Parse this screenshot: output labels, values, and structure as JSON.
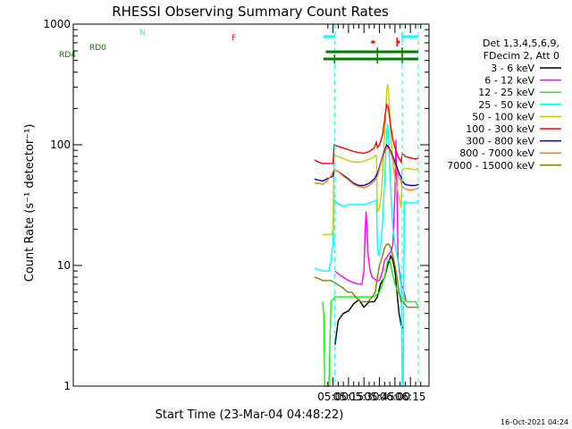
{
  "chart_data": {
    "type": "line",
    "title": "RHESSI Observing Summary Count Rates",
    "xlabel": "Start Time (23-Mar-04 04:48:22)",
    "ylabel": "Count Rate (s⁻¹ detector⁻¹)",
    "y_scale": "log",
    "ylim": [
      1,
      1000
    ],
    "xlim_minutes": [
      48.37,
      393.0
    ],
    "y_ticks": [
      {
        "v": 1,
        "label": "1"
      },
      {
        "v": 10,
        "label": "10"
      },
      {
        "v": 100,
        "label": "100"
      },
      {
        "v": 1000,
        "label": "1000"
      }
    ],
    "x_ticks": [
      {
        "m": 300,
        "label": "05:00"
      },
      {
        "m": 315,
        "label": "05:15"
      },
      {
        "m": 330,
        "label": "05:30"
      },
      {
        "m": 345,
        "label": "05:45"
      },
      {
        "m": 360,
        "label": "06:00"
      },
      {
        "m": 375,
        "label": "06:15"
      }
    ],
    "legend_header": [
      "Det 1,3,4,5,6,9,",
      "FDecim 2, Att 0"
    ],
    "legend_placement": "right",
    "series": [
      {
        "name": "3 - 6 keV",
        "color": "#000000",
        "points": [
          [
            302,
            2.2
          ],
          [
            305,
            3.5
          ],
          [
            310,
            4
          ],
          [
            315,
            4.2
          ],
          [
            320,
            4.8
          ],
          [
            325,
            5.2
          ],
          [
            330,
            4.5
          ],
          [
            335,
            5
          ],
          [
            340,
            5
          ],
          [
            343,
            5.5
          ],
          [
            346,
            7
          ],
          [
            350,
            8
          ],
          [
            353,
            10
          ],
          [
            356,
            12
          ],
          [
            358,
            11
          ],
          [
            360,
            9
          ],
          [
            362,
            6
          ],
          [
            364,
            4
          ],
          [
            366,
            3.2
          ],
          [
            367.5,
            3
          ]
        ]
      },
      {
        "name": "6 - 12 keV",
        "color": "#ff00ff",
        "points": [
          [
            302,
            9
          ],
          [
            305,
            8.5
          ],
          [
            310,
            8
          ],
          [
            315,
            7.5
          ],
          [
            320,
            7.2
          ],
          [
            325,
            7
          ],
          [
            328,
            7
          ],
          [
            330,
            9
          ],
          [
            331,
            18
          ],
          [
            332,
            28
          ],
          [
            333,
            20
          ],
          [
            334,
            12
          ],
          [
            336,
            9
          ],
          [
            338,
            8
          ],
          [
            342,
            7.5
          ],
          [
            345,
            7.5
          ],
          [
            348,
            9
          ],
          [
            350,
            11
          ],
          [
            353,
            12
          ],
          [
            356,
            13
          ],
          [
            358,
            15
          ],
          [
            360,
            40
          ],
          [
            361,
            110
          ],
          [
            362,
            40
          ],
          [
            363,
            11
          ],
          [
            366,
            7
          ],
          [
            368,
            6.5
          ],
          [
            371,
            5
          ]
        ]
      },
      {
        "name": "12 - 25 keV",
        "color": "#00ff00",
        "points": [
          [
            290,
            5
          ],
          [
            291,
            4
          ],
          [
            292,
            1
          ],
          [
            295,
            1
          ],
          [
            296,
            1
          ],
          [
            298,
            5
          ],
          [
            302,
            5.5
          ],
          [
            310,
            5.5
          ],
          [
            320,
            5.5
          ],
          [
            330,
            5.5
          ],
          [
            340,
            5.5
          ],
          [
            345,
            6
          ],
          [
            350,
            8
          ],
          [
            353,
            11
          ],
          [
            355,
            11
          ],
          [
            357,
            9
          ],
          [
            360,
            7
          ],
          [
            363,
            6
          ],
          [
            366,
            5.5
          ],
          [
            372,
            5
          ],
          [
            380,
            5
          ],
          [
            383,
            4.5
          ]
        ]
      },
      {
        "name": "25 - 50 keV",
        "color": "#00ffff",
        "points": [
          [
            282,
            9.5
          ],
          [
            290,
            9
          ],
          [
            294,
            9
          ],
          [
            296,
            9
          ],
          [
            297,
            10
          ],
          [
            298,
            11
          ],
          [
            299,
            13
          ],
          [
            300,
            15
          ],
          [
            301,
            35
          ],
          [
            304,
            33
          ],
          [
            310,
            31
          ],
          [
            315,
            32
          ],
          [
            320,
            32
          ],
          [
            325,
            32
          ],
          [
            330,
            32
          ],
          [
            335,
            33
          ],
          [
            340,
            34
          ],
          [
            342,
            35
          ],
          [
            343,
            15
          ],
          [
            344,
            12
          ],
          [
            346,
            14
          ],
          [
            348,
            22
          ],
          [
            350,
            50
          ],
          [
            352,
            130
          ],
          [
            353,
            150
          ],
          [
            354,
            110
          ],
          [
            356,
            40
          ],
          [
            358,
            20
          ],
          [
            360,
            15
          ],
          [
            362,
            12
          ],
          [
            364,
            10
          ],
          [
            366,
            8
          ],
          [
            367,
            1
          ],
          [
            368,
            1
          ],
          [
            369,
            34
          ],
          [
            372,
            33
          ],
          [
            375,
            33
          ],
          [
            380,
            33
          ],
          [
            383,
            35
          ]
        ]
      },
      {
        "name": "50 - 100 keV",
        "color": "#cccc00",
        "points": [
          [
            290,
            18
          ],
          [
            296,
            18
          ],
          [
            299,
            18
          ],
          [
            300,
            20
          ],
          [
            301,
            82
          ],
          [
            305,
            80
          ],
          [
            310,
            77
          ],
          [
            315,
            74
          ],
          [
            320,
            72
          ],
          [
            325,
            72
          ],
          [
            330,
            73
          ],
          [
            335,
            76
          ],
          [
            340,
            80
          ],
          [
            342,
            82
          ],
          [
            343,
            28
          ],
          [
            345,
            30
          ],
          [
            347,
            40
          ],
          [
            349,
            80
          ],
          [
            351,
            180
          ],
          [
            352,
            280
          ],
          [
            353,
            320
          ],
          [
            354,
            260
          ],
          [
            356,
            120
          ],
          [
            358,
            70
          ],
          [
            360,
            52
          ],
          [
            363,
            40
          ],
          [
            366,
            30
          ],
          [
            367,
            62
          ],
          [
            370,
            64
          ],
          [
            375,
            63
          ],
          [
            380,
            62
          ],
          [
            383,
            64
          ]
        ]
      },
      {
        "name": "100 - 300 keV",
        "color": "#ff0000",
        "points": [
          [
            282,
            75
          ],
          [
            286,
            72
          ],
          [
            290,
            70
          ],
          [
            294,
            70
          ],
          [
            300,
            70
          ],
          [
            301,
            100
          ],
          [
            305,
            97
          ],
          [
            310,
            94
          ],
          [
            315,
            91
          ],
          [
            320,
            88
          ],
          [
            325,
            86
          ],
          [
            330,
            85
          ],
          [
            335,
            88
          ],
          [
            340,
            94
          ],
          [
            342,
            105
          ],
          [
            343,
            95
          ],
          [
            345,
            100
          ],
          [
            348,
            120
          ],
          [
            350,
            160
          ],
          [
            351,
            190
          ],
          [
            352,
            215
          ],
          [
            353,
            210
          ],
          [
            354,
            190
          ],
          [
            356,
            140
          ],
          [
            358,
            110
          ],
          [
            360,
            95
          ],
          [
            363,
            80
          ],
          [
            366,
            72
          ],
          [
            367,
            85
          ],
          [
            370,
            80
          ],
          [
            375,
            78
          ],
          [
            380,
            76
          ],
          [
            383,
            78
          ]
        ]
      },
      {
        "name": "300 - 800 keV",
        "color": "#0000cc",
        "points": [
          [
            282,
            52
          ],
          [
            286,
            51
          ],
          [
            290,
            50
          ],
          [
            294,
            52
          ],
          [
            300,
            55
          ],
          [
            301,
            62
          ],
          [
            305,
            60
          ],
          [
            310,
            56
          ],
          [
            315,
            52
          ],
          [
            320,
            48
          ],
          [
            325,
            46
          ],
          [
            330,
            46
          ],
          [
            335,
            48
          ],
          [
            340,
            52
          ],
          [
            343,
            58
          ],
          [
            346,
            70
          ],
          [
            349,
            85
          ],
          [
            352,
            100
          ],
          [
            354,
            95
          ],
          [
            356,
            88
          ],
          [
            358,
            80
          ],
          [
            360,
            72
          ],
          [
            362,
            65
          ],
          [
            364,
            58
          ],
          [
            366,
            54
          ],
          [
            367,
            50
          ],
          [
            370,
            47
          ],
          [
            375,
            46
          ],
          [
            380,
            46
          ],
          [
            383,
            47
          ]
        ]
      },
      {
        "name": "800 - 7000 keV",
        "color": "#ff8000",
        "points": [
          [
            282,
            48
          ],
          [
            286,
            48
          ],
          [
            290,
            47
          ],
          [
            294,
            50
          ],
          [
            298,
            55
          ],
          [
            300,
            60
          ],
          [
            301,
            62
          ],
          [
            305,
            60
          ],
          [
            310,
            55
          ],
          [
            315,
            51
          ],
          [
            320,
            47
          ],
          [
            325,
            45
          ],
          [
            330,
            44
          ],
          [
            335,
            46
          ],
          [
            340,
            50
          ],
          [
            343,
            55
          ],
          [
            346,
            68
          ],
          [
            349,
            82
          ],
          [
            352,
            96
          ],
          [
            354,
            92
          ],
          [
            356,
            85
          ],
          [
            358,
            76
          ],
          [
            360,
            68
          ],
          [
            362,
            60
          ],
          [
            364,
            54
          ],
          [
            366,
            50
          ],
          [
            367,
            45
          ],
          [
            370,
            43
          ],
          [
            375,
            42
          ],
          [
            380,
            43
          ],
          [
            383,
            44
          ]
        ]
      },
      {
        "name": "7000 - 15000 keV",
        "color": "#808000",
        "points": [
          [
            282,
            8
          ],
          [
            286,
            7.8
          ],
          [
            290,
            7.5
          ],
          [
            294,
            7.5
          ],
          [
            298,
            7.5
          ],
          [
            302,
            7.2
          ],
          [
            306,
            6.8
          ],
          [
            310,
            6.5
          ],
          [
            314,
            6
          ],
          [
            318,
            6
          ],
          [
            322,
            5.5
          ],
          [
            326,
            5
          ],
          [
            330,
            5
          ],
          [
            334,
            5
          ],
          [
            338,
            5.5
          ],
          [
            341,
            6
          ],
          [
            343,
            8
          ],
          [
            345,
            10
          ],
          [
            348,
            12
          ],
          [
            350,
            14
          ],
          [
            352,
            15
          ],
          [
            354,
            15
          ],
          [
            356,
            14
          ],
          [
            358,
            12
          ],
          [
            360,
            10
          ],
          [
            362,
            8
          ],
          [
            364,
            6
          ],
          [
            366,
            5
          ],
          [
            368,
            5
          ],
          [
            372,
            4.5
          ],
          [
            376,
            4.5
          ],
          [
            380,
            4.5
          ],
          [
            383,
            4.5
          ]
        ]
      }
    ],
    "flag_bars": [
      {
        "label": "N",
        "color": "#00ffff",
        "segments": [
          [
            290.8,
            301.5
          ],
          [
            367,
            382.5
          ]
        ]
      },
      {
        "label": "RD0",
        "color": "#008000",
        "segments": [
          [
            293,
            343
          ],
          [
            343,
            367
          ],
          [
            367,
            382.5
          ]
        ]
      },
      {
        "label": "RD4",
        "color": "#008000",
        "segments": [
          [
            290.8,
            301.5
          ],
          [
            301.5,
            343
          ],
          [
            343,
            367
          ],
          [
            367,
            382.5
          ]
        ]
      },
      {
        "label": "F",
        "color": "#ff0000",
        "segments": [
          [
            337,
            340.5
          ],
          [
            362,
            364.5
          ]
        ]
      }
    ],
    "vertical_markers": {
      "color": "#00ffff",
      "minutes": [
        301.5,
        367,
        382.5
      ]
    }
  },
  "footer": {
    "timestamp": "16-Oct-2021 04:24"
  }
}
